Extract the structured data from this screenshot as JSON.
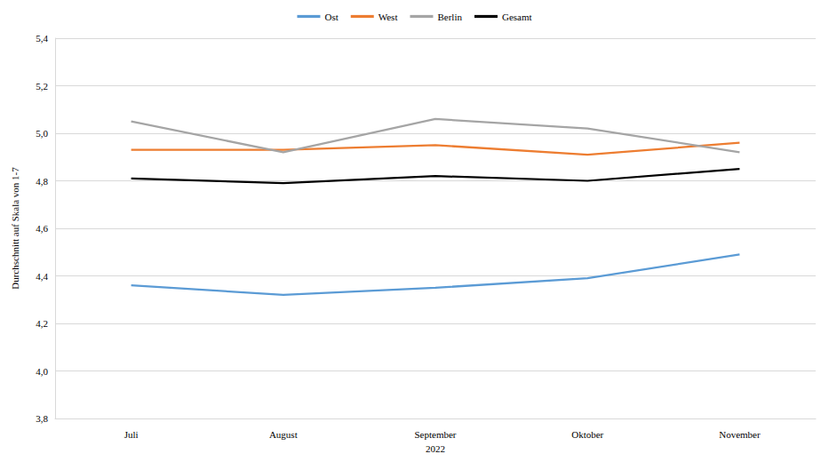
{
  "chart_data": {
    "type": "line",
    "x_label": "2022",
    "y_label": "Durchschnitt auf Skala von 1-7",
    "categories": [
      "Juli",
      "August",
      "September",
      "Oktober",
      "November"
    ],
    "series": [
      {
        "name": "Ost",
        "color": "#5b9bd5",
        "values": [
          4.36,
          4.32,
          4.35,
          4.39,
          4.49
        ]
      },
      {
        "name": "West",
        "color": "#ed7d31",
        "values": [
          4.93,
          4.93,
          4.95,
          4.91,
          4.96
        ]
      },
      {
        "name": "Berlin",
        "color": "#a5a5a5",
        "values": [
          5.05,
          4.92,
          5.06,
          5.02,
          4.92
        ]
      },
      {
        "name": "Gesamt",
        "color": "#000000",
        "values": [
          4.81,
          4.79,
          4.82,
          4.8,
          4.85
        ]
      }
    ],
    "ylim": [
      3.8,
      5.4
    ],
    "yticks": [
      {
        "value": 3.8,
        "label": "3,8"
      },
      {
        "value": 4.0,
        "label": "4,0"
      },
      {
        "value": 4.2,
        "label": "4,2"
      },
      {
        "value": 4.4,
        "label": "4,4"
      },
      {
        "value": 4.6,
        "label": "4,6"
      },
      {
        "value": 4.8,
        "label": "4,8"
      },
      {
        "value": 5.0,
        "label": "5,0"
      },
      {
        "value": 5.2,
        "label": "5,2"
      },
      {
        "value": 5.4,
        "label": "5,4"
      }
    ],
    "grid": true,
    "legend": "top"
  }
}
